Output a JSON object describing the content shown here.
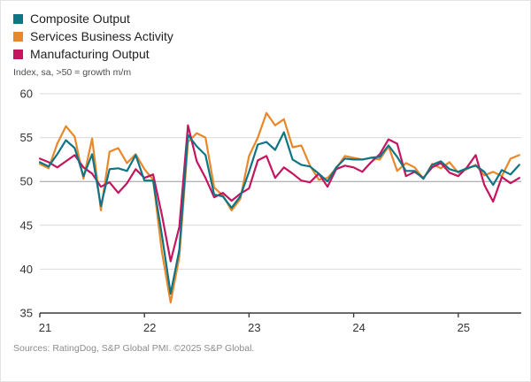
{
  "legend": {
    "items": [
      {
        "label": "Composite Output"
      },
      {
        "label": "Services Business Activity"
      },
      {
        "label": "Manufacturing Output"
      }
    ]
  },
  "subtitle": "Index, sa, >50 = growth m/m",
  "source": "Sources: RatingDog, S&P Global PMI. ©2025 S&P Global.",
  "colors": {
    "composite": "#0e7585",
    "services": "#e8882a",
    "manufacturing": "#c4155e",
    "gridline": "#d9d9d9",
    "reference_gridline": "#9b9b9b",
    "axis": "#3c3c3c"
  },
  "chart_data": {
    "type": "line",
    "title": "",
    "subtitle": "Index, sa, >50 = growth m/m",
    "x_start": "2021-01",
    "x_end": "2025-08",
    "x_tick_labels": [
      "21",
      "22",
      "23",
      "24",
      "25"
    ],
    "xlabel": "",
    "ylabel": "Index, sa, >50 = growth m/m",
    "ylim": [
      35,
      60
    ],
    "y_ticks": [
      35,
      40,
      45,
      50,
      55,
      60
    ],
    "reference_line": 50,
    "grid": "horizontal",
    "legend_position": "top-left",
    "series": [
      {
        "name": "Services Business Activity",
        "color": "#e8882a",
        "values": [
          52.0,
          51.5,
          54.3,
          56.3,
          55.1,
          50.3,
          54.9,
          46.7,
          53.4,
          53.8,
          52.1,
          53.1,
          51.4,
          50.2,
          42.0,
          36.2,
          41.4,
          54.5,
          55.5,
          55.0,
          49.3,
          48.4,
          46.7,
          48.0,
          52.9,
          55.0,
          57.8,
          56.4,
          57.1,
          53.9,
          54.1,
          51.8,
          50.2,
          50.4,
          51.5,
          52.9,
          52.7,
          52.5,
          52.7,
          52.5,
          54.0,
          51.2,
          52.1,
          51.6,
          50.3,
          52.0,
          51.5,
          52.2,
          51.0,
          51.4,
          51.9,
          50.7,
          51.1,
          50.6,
          52.6,
          53.0
        ]
      },
      {
        "name": "Manufacturing Output",
        "color": "#c4155e",
        "values": [
          52.6,
          52.2,
          51.6,
          52.3,
          53.0,
          51.6,
          50.9,
          49.4,
          49.9,
          48.7,
          49.8,
          51.4,
          50.4,
          50.8,
          46.2,
          40.9,
          44.8,
          56.4,
          52.3,
          50.4,
          48.2,
          48.7,
          47.8,
          48.6,
          49.2,
          52.4,
          52.9,
          50.4,
          51.6,
          50.9,
          50.1,
          49.9,
          50.9,
          49.4,
          51.4,
          51.8,
          51.6,
          51.1,
          52.2,
          53.1,
          54.8,
          54.3,
          50.6,
          51.1,
          50.4,
          51.6,
          52.1,
          51.0,
          50.6,
          51.6,
          53.0,
          49.6,
          47.7,
          50.5,
          49.8,
          50.4
        ]
      },
      {
        "name": "Composite Output",
        "color": "#0e7585",
        "values": [
          52.2,
          51.7,
          53.1,
          54.7,
          53.8,
          50.6,
          53.1,
          47.2,
          51.4,
          51.5,
          51.2,
          53.0,
          50.1,
          50.1,
          43.9,
          37.2,
          42.2,
          55.3,
          54.0,
          53.0,
          48.5,
          48.3,
          47.0,
          48.3,
          51.1,
          54.2,
          54.5,
          53.6,
          55.6,
          52.5,
          51.9,
          51.7,
          50.9,
          50.0,
          51.6,
          52.6,
          52.5,
          52.5,
          52.7,
          52.8,
          54.1,
          52.8,
          51.2,
          51.2,
          50.3,
          51.9,
          52.3,
          51.4,
          51.1,
          51.5,
          51.8,
          51.1,
          49.6,
          51.3,
          50.8,
          51.9
        ]
      }
    ]
  }
}
